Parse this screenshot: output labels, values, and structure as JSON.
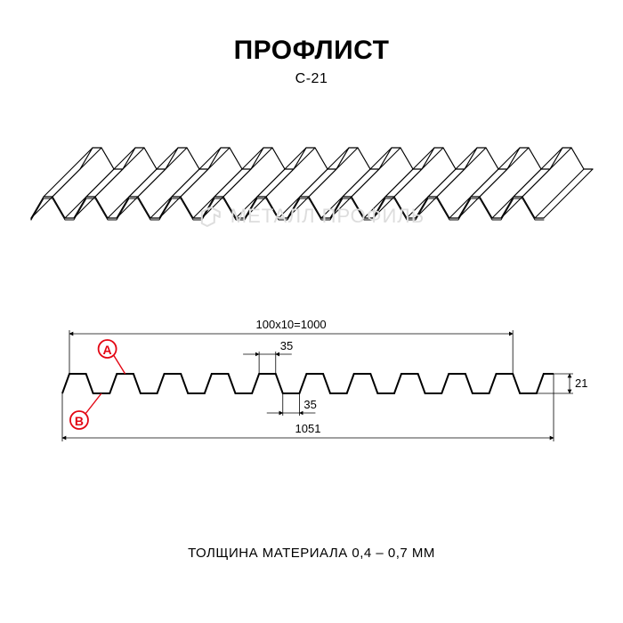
{
  "title": "ПРОФЛИСТ",
  "subtitle": "С-21",
  "watermark_text": "МЕТАЛЛ ПРОФИЛЬ",
  "footer": "ТОЛЩИНА МАТЕРИАЛА 0,4 – 0,7 ММ",
  "colors": {
    "stroke": "#000000",
    "background": "#ffffff",
    "marker": "#e30613",
    "watermark": "#dddddd",
    "dim_line": "#000000"
  },
  "isometric": {
    "type": "corrugated-sheet-isometric",
    "ridges": 12,
    "stroke_width": 1.2
  },
  "cross_section": {
    "type": "corrugated-profile",
    "ridges": 10,
    "top_flat_mm": 35,
    "bottom_flat_mm": 35,
    "height_mm": 21,
    "pitch_label": "100x10=1000",
    "overall_width_mm": 1051,
    "stroke_width": 2,
    "markers": [
      {
        "id": "A",
        "at": "top-flat",
        "color": "#e30613"
      },
      {
        "id": "B",
        "at": "bottom-flat",
        "color": "#e30613"
      }
    ],
    "dimensions": {
      "top_span": "100x10=1000",
      "bottom_span": "1051",
      "top_flat": "35",
      "bottom_flat": "35",
      "height": "21"
    }
  }
}
